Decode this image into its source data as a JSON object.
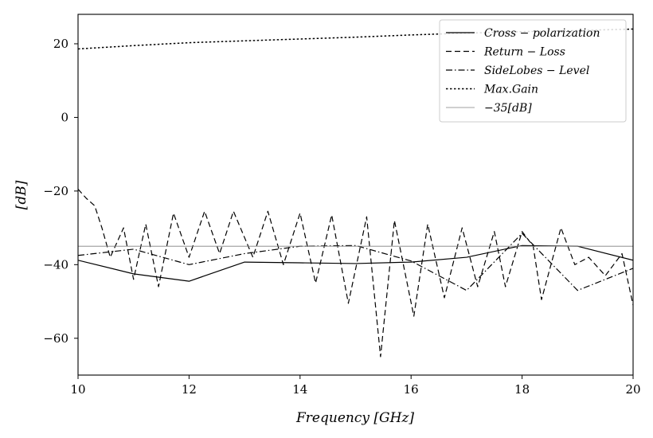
{
  "chart_data": {
    "type": "line",
    "title": "",
    "xlabel": "Frequency [GHz]",
    "ylabel": "[dB]",
    "xlim": [
      10,
      20
    ],
    "ylim": [
      -70,
      28
    ],
    "xticks": [
      10,
      12,
      14,
      16,
      18,
      20
    ],
    "yticks": [
      20,
      0,
      -20,
      -40,
      -60
    ],
    "xtick_labels": [
      "10",
      "12",
      "14",
      "16",
      "18",
      "20"
    ],
    "ytick_labels": [
      "20",
      "0",
      "−20",
      "−40",
      "−60"
    ],
    "legend_position": "top-right",
    "series": [
      {
        "name": "Cross − polarization",
        "style": "solid",
        "color": "#000000",
        "x": [
          10,
          11,
          12,
          13,
          14,
          15,
          16,
          17,
          18,
          19,
          20
        ],
        "y": [
          -38.8,
          -42.5,
          -44.5,
          -39.3,
          -39.5,
          -39.7,
          -39.3,
          -38.0,
          -34.8,
          -35.0,
          -38.8
        ]
      },
      {
        "name": "Return − Loss",
        "style": "dashed",
        "color": "#000000",
        "x": [
          10.0,
          10.15,
          10.3,
          10.43,
          10.58,
          10.82,
          11.0,
          11.22,
          11.45,
          11.72,
          12.0,
          12.28,
          12.55,
          12.8,
          13.15,
          13.42,
          13.7,
          14.0,
          14.28,
          14.57,
          14.87,
          15.2,
          15.45,
          15.7,
          16.05,
          16.3,
          16.6,
          16.92,
          17.2,
          17.5,
          17.7,
          18.0,
          18.2,
          18.35,
          18.7,
          18.95,
          19.2,
          19.5,
          19.8,
          20.0
        ],
        "y": [
          -19.5,
          -22.0,
          -24.0,
          -30.0,
          -38.0,
          -30.0,
          -44.0,
          -29.0,
          -46.0,
          -26.0,
          -38.0,
          -25.5,
          -37.0,
          -25.5,
          -38.0,
          -25.5,
          -40.0,
          -26.0,
          -45.0,
          -26.5,
          -50.5,
          -27.0,
          -65.0,
          -28.0,
          -54.0,
          -29.0,
          -49.0,
          -30.0,
          -46.0,
          -31.0,
          -46.0,
          -31.0,
          -35.0,
          -49.5,
          -30.0,
          -40.0,
          -38.0,
          -43.0,
          -37.0,
          -51.0
        ]
      },
      {
        "name": "SideLobes − Level",
        "style": "dashdot",
        "color": "#000000",
        "x": [
          10,
          11,
          12,
          13,
          14,
          15,
          16,
          17,
          18,
          19,
          20
        ],
        "y": [
          -37.5,
          -35.8,
          -40.0,
          -37.0,
          -35.0,
          -34.8,
          -39.0,
          -47.0,
          -31.5,
          -47.0,
          -41.0
        ]
      },
      {
        "name": "Max.Gain",
        "style": "dotted",
        "color": "#000000",
        "x": [
          10,
          11,
          12,
          13,
          14,
          15,
          16,
          17,
          18,
          19,
          20
        ],
        "y": [
          18.6,
          19.5,
          20.3,
          20.8,
          21.3,
          21.8,
          22.4,
          22.9,
          23.3,
          23.6,
          24.0
        ]
      },
      {
        "name": "−35[dB]",
        "style": "thin",
        "color": "#808080",
        "x": [
          10,
          20
        ],
        "y": [
          -35,
          -35
        ]
      }
    ]
  }
}
